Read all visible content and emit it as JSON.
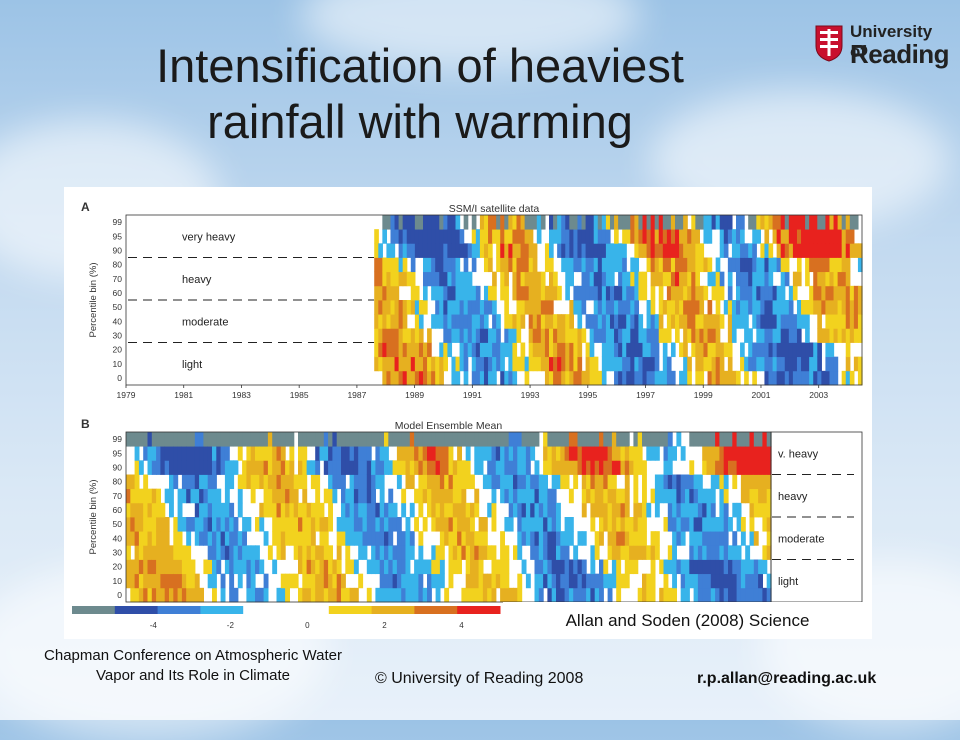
{
  "slide": {
    "title": "Intensification of heaviest rainfall with warming",
    "logo_line1": "University of",
    "logo_line2": "Reading",
    "citation": "Allan and Soden (2008) Science",
    "footer_left": "Chapman Conference on Atmospheric Water Vapor and Its Role in Climate",
    "footer_center": "© University of Reading 2008",
    "footer_right": "r.p.allan@reading.ac.uk"
  },
  "chart_data": [
    {
      "type": "heatmap",
      "panel": "A",
      "title": "SSM/I satellite data",
      "ylabel": "Percentile bin (%)",
      "y_ticks": [
        "0",
        "10",
        "20",
        "30",
        "40",
        "50",
        "60",
        "70",
        "80",
        "90",
        "95",
        "99"
      ],
      "x_ticks": [
        "1979",
        "1981",
        "1983",
        "1985",
        "1987",
        "1989",
        "1991",
        "1993",
        "1995",
        "1997",
        "1999",
        "2001",
        "2003"
      ],
      "xlim": [
        1979,
        2004.5
      ],
      "data_start": 1987.6,
      "categories": [
        "light",
        "moderate",
        "heavy",
        "very heavy"
      ],
      "color_legend": {
        "ticks": [
          "-4",
          "-2",
          "0",
          "2",
          "4"
        ],
        "range": [
          -5,
          5
        ]
      }
    },
    {
      "type": "heatmap",
      "panel": "B",
      "title": "Model Ensemble Mean",
      "ylabel": "Percentile bin (%)",
      "y_ticks": [
        "0",
        "10",
        "20",
        "30",
        "40",
        "50",
        "60",
        "70",
        "80",
        "90",
        "95",
        "99"
      ],
      "xlim": [
        1979,
        2004.5
      ],
      "categories": [
        "light",
        "moderate",
        "heavy",
        "v. heavy"
      ]
    }
  ],
  "palette": {
    "missing": "#6d8a8e",
    "neg_strong": "#2f4ea8",
    "neg_mid": "#3f7fd6",
    "neg_weak": "#38b4ea",
    "zero": "#ffffff",
    "pos_weak": "#f2d21e",
    "pos_mid": "#e6b020",
    "pos_strong": "#d87020",
    "pos_max": "#e8221e"
  }
}
